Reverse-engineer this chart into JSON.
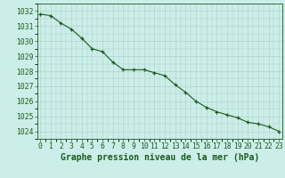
{
  "x": [
    0,
    1,
    2,
    3,
    4,
    5,
    6,
    7,
    8,
    9,
    10,
    11,
    12,
    13,
    14,
    15,
    16,
    17,
    18,
    19,
    20,
    21,
    22,
    23
  ],
  "y": [
    1031.8,
    1031.7,
    1031.2,
    1030.8,
    1030.2,
    1029.5,
    1029.3,
    1028.6,
    1028.1,
    1028.1,
    1028.1,
    1027.9,
    1027.7,
    1027.1,
    1026.6,
    1026.0,
    1025.6,
    1025.3,
    1025.1,
    1024.9,
    1024.6,
    1024.5,
    1024.3,
    1024.0
  ],
  "ylim": [
    1023.5,
    1032.5
  ],
  "yticks": [
    1024,
    1025,
    1026,
    1027,
    1028,
    1029,
    1030,
    1031,
    1032
  ],
  "xticks": [
    0,
    1,
    2,
    3,
    4,
    5,
    6,
    7,
    8,
    9,
    10,
    11,
    12,
    13,
    14,
    15,
    16,
    17,
    18,
    19,
    20,
    21,
    22,
    23
  ],
  "xlabel": "Graphe pression niveau de la mer (hPa)",
  "line_color": "#1a5c1a",
  "marker_color": "#1a5c1a",
  "bg_color": "#cceee8",
  "grid_color": "#aacfc8",
  "text_color": "#1a5c1a",
  "spine_color": "#1a5c1a",
  "tick_label_fontsize": 5.8,
  "xlabel_fontsize": 7.0
}
